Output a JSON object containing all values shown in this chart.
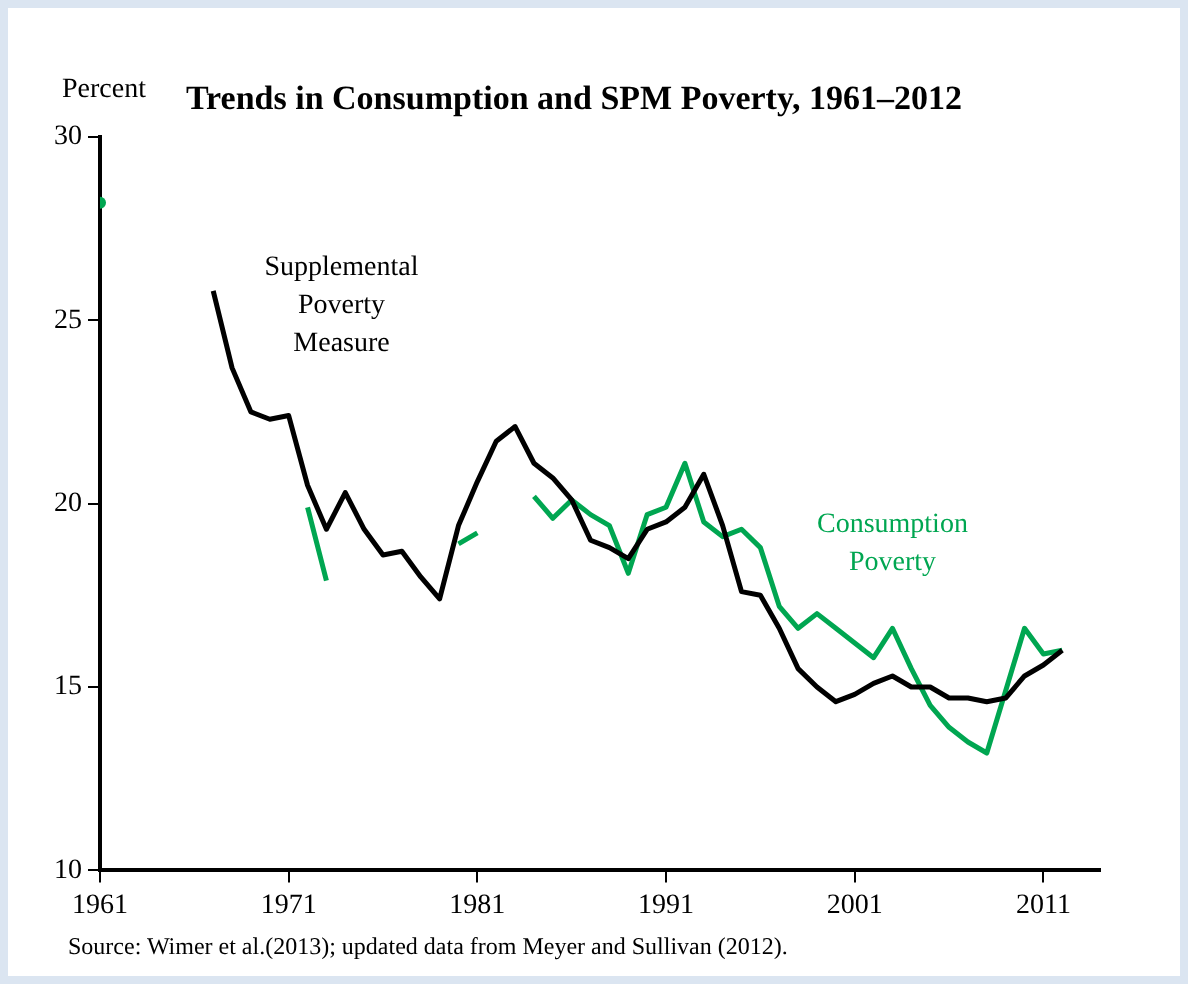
{
  "chart_data": {
    "type": "line",
    "title": "Trends in Consumption and SPM Poverty, 1961–2012",
    "ylabel": "Percent",
    "x": [
      1961,
      1962,
      1963,
      1964,
      1965,
      1966,
      1967,
      1968,
      1969,
      1970,
      1971,
      1972,
      1973,
      1974,
      1975,
      1976,
      1977,
      1978,
      1979,
      1980,
      1981,
      1982,
      1983,
      1984,
      1985,
      1986,
      1987,
      1988,
      1989,
      1990,
      1991,
      1992,
      1993,
      1994,
      1995,
      1996,
      1997,
      1998,
      1999,
      2000,
      2001,
      2002,
      2003,
      2004,
      2005,
      2006,
      2007,
      2008,
      2009,
      2010,
      2011,
      2012
    ],
    "series": [
      {
        "name": "Supplemental Poverty Measure",
        "color": "#000000",
        "values": [
          null,
          null,
          null,
          null,
          null,
          null,
          25.8,
          23.7,
          22.5,
          22.3,
          22.4,
          20.5,
          19.3,
          20.3,
          19.3,
          18.6,
          18.7,
          18.0,
          17.4,
          19.4,
          20.6,
          21.7,
          22.1,
          21.1,
          20.7,
          20.1,
          19.0,
          18.8,
          18.5,
          19.3,
          19.5,
          19.9,
          20.8,
          19.4,
          17.6,
          17.5,
          16.6,
          15.5,
          15.0,
          14.6,
          14.8,
          15.1,
          15.3,
          15.0,
          15.0,
          14.7,
          14.7,
          14.6,
          14.7,
          15.3,
          15.6,
          16.0
        ]
      },
      {
        "name": "Consumption Poverty",
        "color": "#00a651",
        "values": [
          28.2,
          null,
          null,
          null,
          null,
          null,
          null,
          null,
          null,
          null,
          null,
          19.9,
          17.9,
          null,
          null,
          null,
          null,
          null,
          null,
          18.9,
          19.2,
          null,
          null,
          20.2,
          19.6,
          20.1,
          19.7,
          19.4,
          18.1,
          19.7,
          19.9,
          21.1,
          19.5,
          19.1,
          19.3,
          18.8,
          17.2,
          16.6,
          17.0,
          16.6,
          16.2,
          15.8,
          16.6,
          15.5,
          14.5,
          13.9,
          13.5,
          13.2,
          14.9,
          16.6,
          15.9,
          16.0
        ]
      }
    ],
    "xlim": [
      1961,
      2014
    ],
    "xticks": [
      1961,
      1971,
      1981,
      1991,
      2001,
      2011
    ],
    "ylim": [
      10,
      30
    ],
    "yticks": [
      10,
      15,
      20,
      25,
      30
    ],
    "grid": false,
    "legend": false,
    "marker": "none",
    "line_style": "solid",
    "annotations": [
      "Source: Wimer et al.(2013); updated data from Meyer and Sullivan (2012)."
    ]
  }
}
